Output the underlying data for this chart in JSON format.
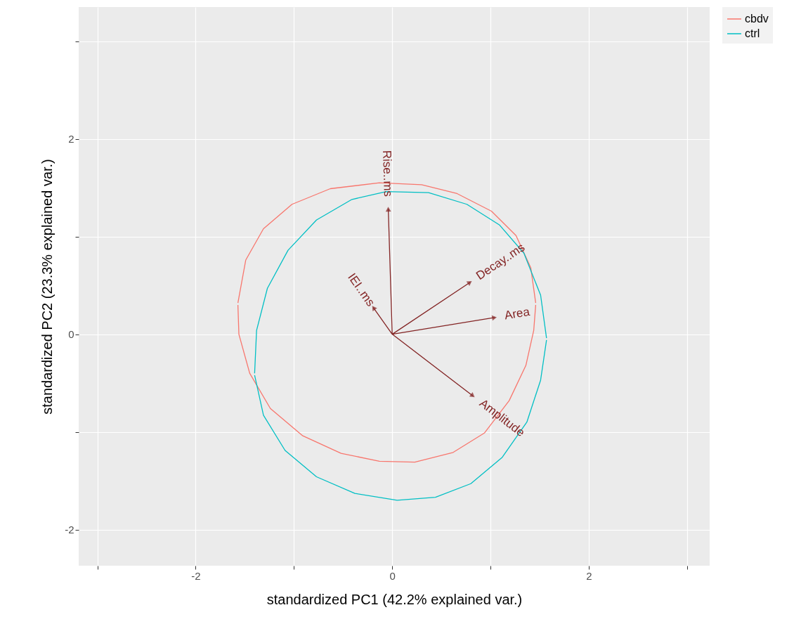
{
  "chart_data": {
    "type": "line",
    "xlabel": "standardized PC1 (42.2% explained var.)",
    "ylabel": "standardized PC2 (23.3% explained var.)",
    "xlim": [
      -3.19,
      3.23
    ],
    "ylim": [
      -2.37,
      3.35
    ],
    "xticks": [
      {
        "value": -3,
        "label": null
      },
      -2,
      {
        "value": -1,
        "label": null
      },
      0,
      {
        "value": 1,
        "label": null
      },
      2,
      {
        "value": 3,
        "label": null
      }
    ],
    "yticks": [
      -2,
      {
        "value": -1,
        "label": null
      },
      0,
      {
        "value": 1,
        "label": null
      },
      2,
      {
        "value": 3,
        "label": null
      }
    ],
    "grid": true,
    "legend": "right",
    "series": [
      {
        "name": "cbdv",
        "color": "#f8766d",
        "x": [
          -1.57,
          -1.49,
          -1.31,
          -1.02,
          -0.63,
          -0.13,
          0.3,
          0.66,
          1.01,
          1.26,
          1.41,
          1.46
        ],
        "values": [
          0.32,
          0.76,
          1.08,
          1.33,
          1.49,
          1.55,
          1.53,
          1.44,
          1.26,
          1.01,
          0.68,
          0.32
        ]
      },
      {
        "color": "#f8766d",
        "x": [
          -1.57,
          -1.56,
          -1.45,
          -1.24,
          -0.91,
          -0.52,
          -0.13,
          0.23,
          0.62,
          0.94,
          1.19,
          1.36,
          1.44,
          1.46
        ],
        "values": [
          0.3,
          0.0,
          -0.4,
          -0.76,
          -1.04,
          -1.22,
          -1.3,
          -1.31,
          -1.21,
          -1.01,
          -0.68,
          -0.32,
          0.04,
          0.3
        ]
      },
      {
        "name": "ctrl",
        "color": "#00bfc4",
        "x": [
          -1.4,
          -1.38,
          -1.27,
          -1.06,
          -0.77,
          -0.41,
          -0.06,
          0.37,
          0.76,
          1.09,
          1.34,
          1.51,
          1.57
        ],
        "values": [
          -0.4,
          0.04,
          0.47,
          0.86,
          1.17,
          1.38,
          1.46,
          1.45,
          1.33,
          1.12,
          0.83,
          0.4,
          -0.04
        ]
      },
      {
        "color": "#00bfc4",
        "x": [
          -1.4,
          -1.31,
          -1.09,
          -0.77,
          -0.38,
          0.05,
          0.44,
          0.8,
          1.12,
          1.37,
          1.51,
          1.57
        ],
        "values": [
          -0.42,
          -0.83,
          -1.19,
          -1.46,
          -1.63,
          -1.7,
          -1.67,
          -1.53,
          -1.26,
          -0.9,
          -0.47,
          -0.06
        ]
      },
      {
        "type": "line",
        "marker": "triangle",
        "color": "#832424",
        "x": [
          0,
          -0.04,
          0,
          -0.19,
          0,
          0.79,
          0,
          1.04,
          0,
          0.82
        ],
        "values": [
          0,
          1.28,
          0,
          0.27,
          0,
          0.53,
          0,
          0.17,
          0,
          -0.63
        ]
      }
    ],
    "annotations": [
      "Rise..ms",
      "IEI..ms",
      "Decay..ms",
      "Area",
      "Amplitude"
    ]
  }
}
